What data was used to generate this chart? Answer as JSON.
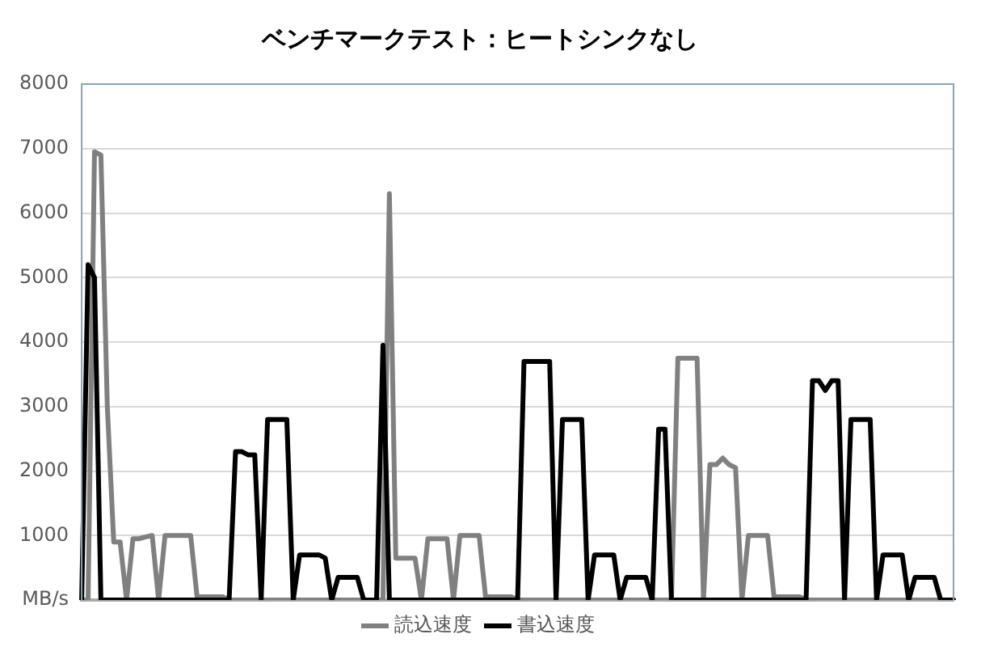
{
  "chart_data": {
    "type": "line",
    "title": "ベンチマークテスト：ヒートシンクなし",
    "categories": [
      null,
      null,
      null,
      null,
      null,
      null,
      null,
      null,
      null,
      null,
      null,
      null,
      null,
      null,
      null,
      null,
      null,
      null,
      null,
      null,
      null,
      null,
      null,
      null,
      null,
      null,
      null,
      null,
      null,
      null,
      null,
      null,
      null,
      null,
      null,
      null,
      null,
      null,
      null,
      null,
      null,
      null,
      null,
      null,
      null,
      null,
      null,
      null,
      null,
      null,
      null,
      null,
      null,
      null,
      null,
      null,
      null,
      null,
      null,
      null,
      null,
      null,
      null,
      null,
      null,
      null,
      null,
      null,
      null,
      null,
      null,
      null,
      null,
      null,
      null,
      null,
      null,
      null,
      null,
      null,
      null,
      null,
      null,
      null,
      null,
      null,
      null,
      null,
      null,
      null,
      null,
      null,
      null,
      null,
      null,
      null,
      null,
      null,
      null,
      null,
      null,
      null,
      null,
      null,
      null,
      null,
      null,
      null,
      null,
      null,
      null,
      null,
      null,
      null,
      null,
      null,
      null,
      null,
      null,
      null,
      null,
      null,
      null,
      null,
      null,
      null,
      null,
      null,
      null,
      null,
      null,
      null,
      null,
      null,
      null,
      null,
      null
    ],
    "series": [
      {
        "name": "読込速度",
        "color": "#808080",
        "values": [
          0,
          0,
          6950,
          6900,
          3000,
          900,
          900,
          0,
          950,
          950,
          980,
          1000,
          0,
          1000,
          1000,
          1000,
          1000,
          1000,
          50,
          50,
          50,
          50,
          50,
          0,
          0,
          0,
          0,
          0,
          0,
          0,
          0,
          0,
          0,
          0,
          0,
          0,
          0,
          0,
          0,
          0,
          0,
          0,
          0,
          0,
          0,
          0,
          0,
          0,
          6300,
          650,
          650,
          650,
          650,
          0,
          950,
          950,
          950,
          950,
          0,
          1000,
          1000,
          1000,
          1000,
          50,
          50,
          50,
          50,
          50,
          0,
          0,
          0,
          0,
          0,
          0,
          0,
          0,
          0,
          0,
          0,
          0,
          0,
          0,
          0,
          0,
          0,
          0,
          0,
          0,
          0,
          0,
          0,
          0,
          0,
          3750,
          3750,
          3750,
          3750,
          0,
          2100,
          2100,
          2200,
          2100,
          2050,
          0,
          1000,
          1000,
          1000,
          1000,
          50,
          50,
          50,
          50,
          50,
          0,
          0,
          0,
          0,
          0,
          0,
          0,
          0,
          0,
          0,
          0,
          0,
          0,
          0,
          0,
          0,
          0,
          0,
          0,
          0,
          0,
          0,
          0,
          0
        ]
      },
      {
        "name": "書込速度",
        "color": "#000000",
        "values": [
          0,
          5200,
          5000,
          0,
          0,
          0,
          0,
          0,
          0,
          0,
          0,
          0,
          0,
          0,
          0,
          0,
          0,
          0,
          0,
          0,
          0,
          0,
          0,
          0,
          2300,
          2300,
          2250,
          2250,
          0,
          2800,
          2800,
          2800,
          2800,
          0,
          700,
          700,
          700,
          700,
          650,
          0,
          350,
          350,
          350,
          350,
          0,
          0,
          0,
          3950,
          0,
          0,
          0,
          0,
          0,
          0,
          0,
          0,
          0,
          0,
          0,
          0,
          0,
          0,
          0,
          0,
          0,
          0,
          0,
          0,
          0,
          3700,
          3700,
          3700,
          3700,
          3700,
          0,
          2800,
          2800,
          2800,
          2800,
          0,
          700,
          700,
          700,
          700,
          0,
          350,
          350,
          350,
          350,
          0,
          2650,
          2650,
          0,
          0,
          0,
          0,
          0,
          0,
          0,
          0,
          0,
          0,
          0,
          0,
          0,
          0,
          0,
          0,
          0,
          0,
          0,
          0,
          0,
          0,
          3400,
          3400,
          3250,
          3400,
          3400,
          0,
          2800,
          2800,
          2800,
          2800,
          0,
          700,
          700,
          700,
          700,
          0,
          350,
          350,
          350,
          350,
          0,
          0,
          0
        ]
      }
    ],
    "ylim": [
      0,
      8000
    ],
    "yticks": [
      {
        "value": 0,
        "label": "MB/s"
      },
      1000,
      2000,
      3000,
      4000,
      5000,
      6000,
      7000,
      8000
    ],
    "grid": "y",
    "legend": "bottom",
    "tick_labels": "y",
    "marker": "none",
    "line_style": "solid"
  }
}
